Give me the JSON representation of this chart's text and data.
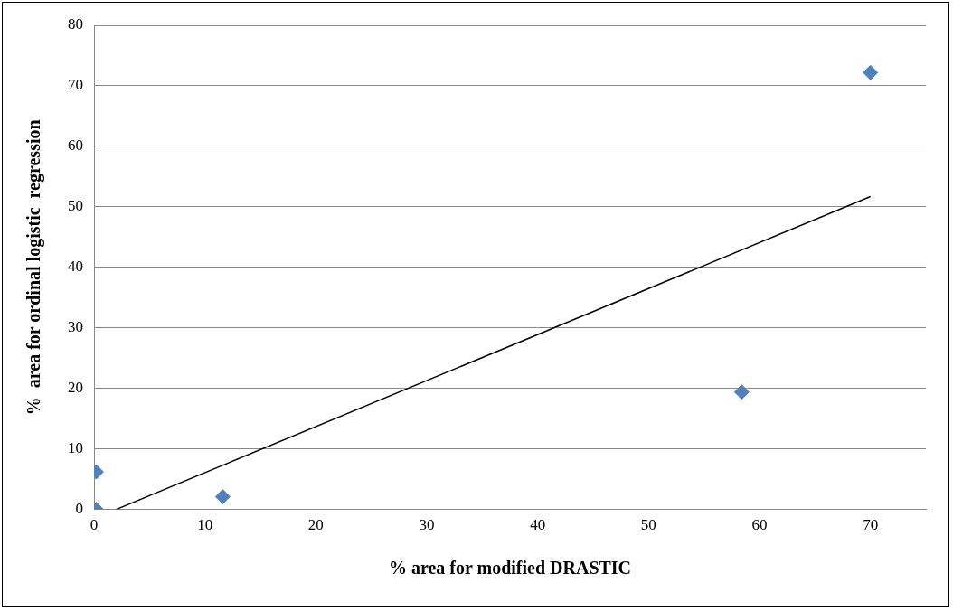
{
  "chart_data": {
    "type": "scatter",
    "xlabel": "% area for modified DRASTIC",
    "ylabel": "%  area for ordinal logistic  regression",
    "x": [
      0.2,
      0.2,
      11.6,
      58.4,
      70
    ],
    "series": [
      {
        "color": "#4f81bd",
        "values": [
          6.2,
          0,
          2.1,
          19.4,
          72.2
        ],
        "marker": "diamond"
      },
      {
        "type": "line",
        "color": "#000000",
        "x": [
          2,
          70
        ],
        "values": [
          0,
          51.7
        ],
        "marker": "none"
      }
    ],
    "xlim": [
      0,
      75
    ],
    "xticks": [
      0,
      10,
      20,
      30,
      40,
      50,
      60,
      70
    ],
    "ylim": [
      0,
      80
    ],
    "yticks": [
      0,
      10,
      20,
      30,
      40,
      50,
      60,
      70,
      80
    ],
    "grid": "y",
    "legend": false
  }
}
